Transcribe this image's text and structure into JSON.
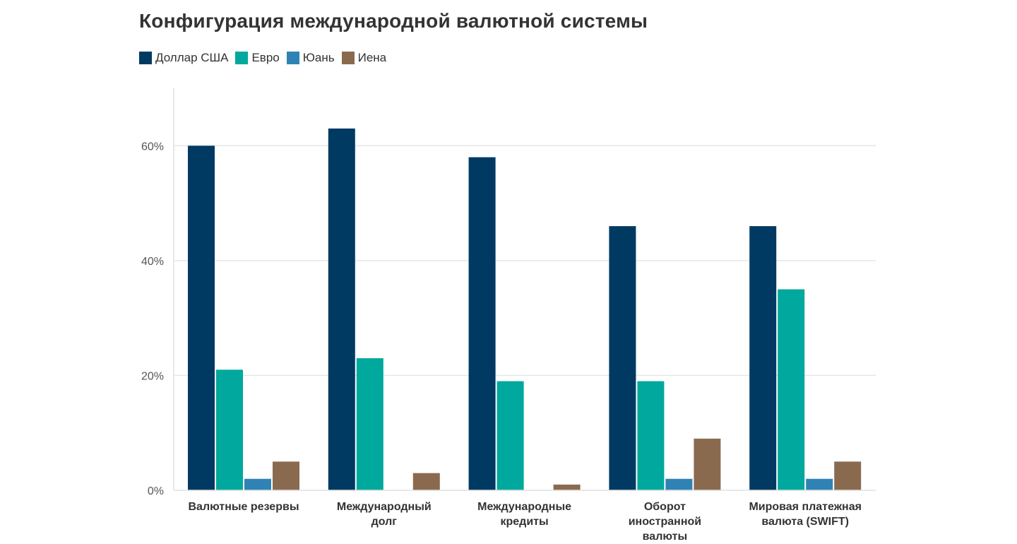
{
  "chart_data": {
    "type": "bar",
    "title": "Конфигурация международной валютной системы",
    "categories": [
      [
        "Валютные резервы"
      ],
      [
        "Международный",
        "долг"
      ],
      [
        "Международные",
        "кредиты"
      ],
      [
        "Оборот",
        "иностранной",
        "валюты"
      ],
      [
        "Мировая платежная",
        "валюта (SWIFT)"
      ]
    ],
    "series": [
      {
        "name": "Доллар США",
        "color": "#003A63",
        "values": [
          60,
          63,
          58,
          46,
          46
        ]
      },
      {
        "name": "Евро",
        "color": "#00A89D",
        "values": [
          21,
          23,
          19,
          19,
          35
        ]
      },
      {
        "name": "Юань",
        "color": "#2F83B4",
        "values": [
          2,
          0,
          0,
          2,
          2
        ]
      },
      {
        "name": "Иена",
        "color": "#8A6A4F",
        "values": [
          5,
          3,
          1,
          9,
          5
        ]
      }
    ],
    "ylim": [
      0,
      70
    ],
    "yticks": [
      0,
      20,
      40,
      60
    ],
    "ytick_labels": [
      "0%",
      "20%",
      "40%",
      "60%"
    ],
    "xlabel": "",
    "ylabel": "",
    "grid": true,
    "legend_position": "top-left"
  }
}
